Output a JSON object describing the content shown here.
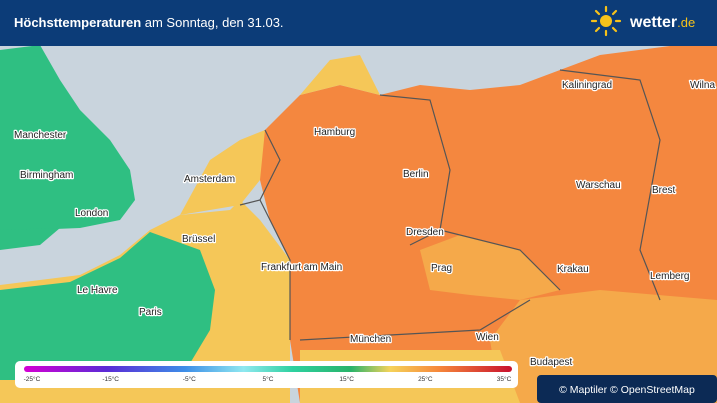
{
  "header": {
    "title_bold": "Höchsttemperaturen",
    "title_rest": "am Sonntag, den 31.03.",
    "logo_main": "wetter",
    "logo_suffix": ".de"
  },
  "cities": [
    "Kaliningrad",
    "Wilna",
    "Manchester",
    "Hamburg",
    "Birmingham",
    "Berlin",
    "Amsterdam",
    "Warschau",
    "Brest",
    "London",
    "Dresden",
    "Brüssel",
    "Frankfurt am Main",
    "Prag",
    "Krakau",
    "Lemberg",
    "Le Havre",
    "Paris",
    "München",
    "Wien",
    "Budapest"
  ],
  "legend": {
    "ticks": [
      "-25°C",
      "-15°C",
      "-5°C",
      "5°C",
      "15°C",
      "25°C",
      "35°C"
    ]
  },
  "attribution": "© Maptiler © OpenStreetMap"
}
